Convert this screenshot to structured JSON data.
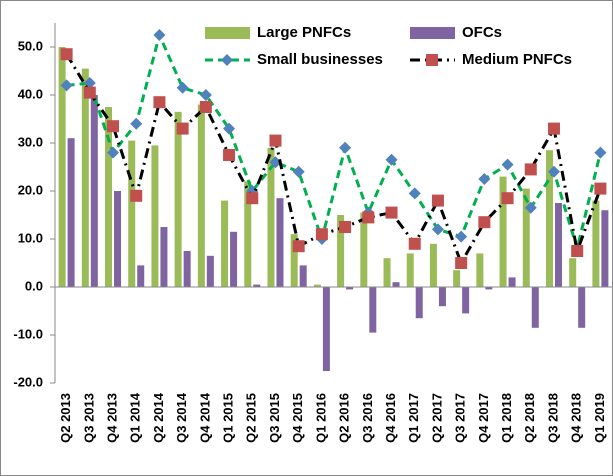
{
  "chart_data": {
    "type": "combo",
    "categories": [
      "Q2 2013",
      "Q3 2013",
      "Q4 2013",
      "Q1 2014",
      "Q2 2014",
      "Q3 2014",
      "Q4 2014",
      "Q1 2015",
      "Q2 2015",
      "Q3 2015",
      "Q4 2015",
      "Q1 2016",
      "Q2 2016",
      "Q3 2016",
      "Q4 2016",
      "Q1 2017",
      "Q2 2017",
      "Q3 2017",
      "Q4 2017",
      "Q1 2018",
      "Q2 2018",
      "Q3 2018",
      "Q4 2018",
      "Q1 2019"
    ],
    "series": [
      {
        "name": "Large PNFCs",
        "type": "bar",
        "color": "#9bbb59",
        "values": [
          50,
          45.5,
          37.5,
          30.5,
          29.5,
          36.5,
          38,
          18,
          22,
          29,
          11,
          0.5,
          15,
          15.5,
          6,
          7,
          9,
          3.5,
          7,
          23,
          20.5,
          28.5,
          6,
          18
        ]
      },
      {
        "name": "OFCs",
        "type": "bar",
        "color": "#8064a2",
        "values": [
          31,
          40,
          20,
          4.5,
          12.5,
          7.5,
          6.5,
          11.5,
          0.5,
          18.5,
          4.5,
          -17.5,
          -0.5,
          -9.5,
          1,
          -6.5,
          -4,
          -5.5,
          -0.5,
          2,
          -8.5,
          17.5,
          -8.5,
          16
        ]
      },
      {
        "name": "Small businesses",
        "type": "line",
        "color": "#00b050",
        "marker": "diamond",
        "marker_color": "#4f81bd",
        "values": [
          42,
          42.5,
          28,
          34,
          52.5,
          41.5,
          40,
          33,
          20,
          26,
          24,
          10,
          29,
          15.5,
          26.5,
          19.5,
          12,
          10.5,
          22.5,
          25.5,
          16.5,
          24,
          8,
          28
        ]
      },
      {
        "name": "Medium PNFCs",
        "type": "line",
        "color": "#000000",
        "marker": "square",
        "marker_color": "#c0504d",
        "values": [
          48.5,
          40.5,
          33.5,
          19,
          38.5,
          33,
          37.5,
          27.5,
          18.5,
          30.5,
          8.5,
          11,
          12.5,
          14.5,
          15.5,
          9,
          18,
          5,
          13.5,
          18.5,
          24.5,
          33,
          7.5,
          20.5
        ]
      }
    ],
    "ylim": [
      -20,
      55
    ],
    "yticks": [
      {
        "value": -20,
        "label": "-20.0"
      },
      {
        "value": -10,
        "label": "-10.0"
      },
      {
        "value": 0,
        "label": "0.0"
      },
      {
        "value": 10,
        "label": "10.0"
      },
      {
        "value": 20,
        "label": "20.0"
      },
      {
        "value": 30,
        "label": "30.0"
      },
      {
        "value": 40,
        "label": "40.0"
      },
      {
        "value": 50,
        "label": "50.0"
      }
    ],
    "grid": false
  }
}
